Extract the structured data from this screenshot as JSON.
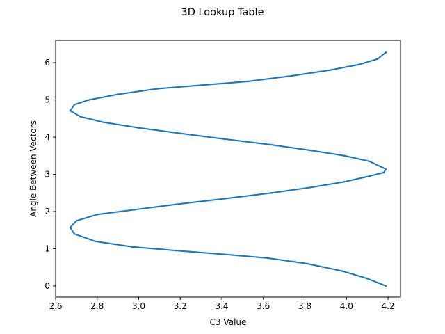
{
  "chart_data": {
    "type": "scatter",
    "title": "3D Lookup Table",
    "xlabel": "C3 Value",
    "ylabel": "Angle Between Vectors",
    "xlim": [
      2.6,
      4.26
    ],
    "ylim": [
      -0.3,
      6.6
    ],
    "xticks": [
      "2.6",
      "2.8",
      "3.0",
      "3.2",
      "3.4",
      "3.6",
      "3.8",
      "4.0",
      "4.2"
    ],
    "yticks": [
      "0",
      "1",
      "2",
      "3",
      "4",
      "5",
      "6"
    ],
    "grid": false,
    "legend": "none",
    "colors": {
      "series": "#1f77b4",
      "axis": "#000000",
      "background": "#ffffff"
    },
    "series": [
      {
        "description_of_points": "dense points sampled along the curve",
        "x": [
          4.19,
          4.1,
          3.98,
          3.81,
          3.62,
          3.41,
          3.18,
          2.97,
          2.79,
          2.69,
          2.67,
          2.7,
          2.8,
          2.98,
          3.19,
          3.42,
          3.64,
          3.83,
          3.99,
          4.11,
          4.18,
          4.19,
          4.11,
          3.99,
          3.82,
          3.63,
          3.41,
          3.2,
          3.0,
          2.83,
          2.72,
          2.67,
          2.69,
          2.76,
          2.9,
          3.09,
          3.31,
          3.53,
          3.74,
          3.92,
          4.06,
          4.15,
          4.19
        ],
        "y": [
          0.0,
          0.2,
          0.4,
          0.6,
          0.75,
          0.85,
          0.95,
          1.05,
          1.2,
          1.4,
          1.57,
          1.75,
          1.92,
          2.05,
          2.2,
          2.35,
          2.5,
          2.65,
          2.8,
          2.95,
          3.05,
          3.14,
          3.35,
          3.5,
          3.65,
          3.8,
          3.95,
          4.1,
          4.25,
          4.4,
          4.55,
          4.71,
          4.87,
          5.0,
          5.15,
          5.3,
          5.4,
          5.5,
          5.65,
          5.8,
          5.95,
          6.1,
          6.28
        ]
      }
    ]
  }
}
